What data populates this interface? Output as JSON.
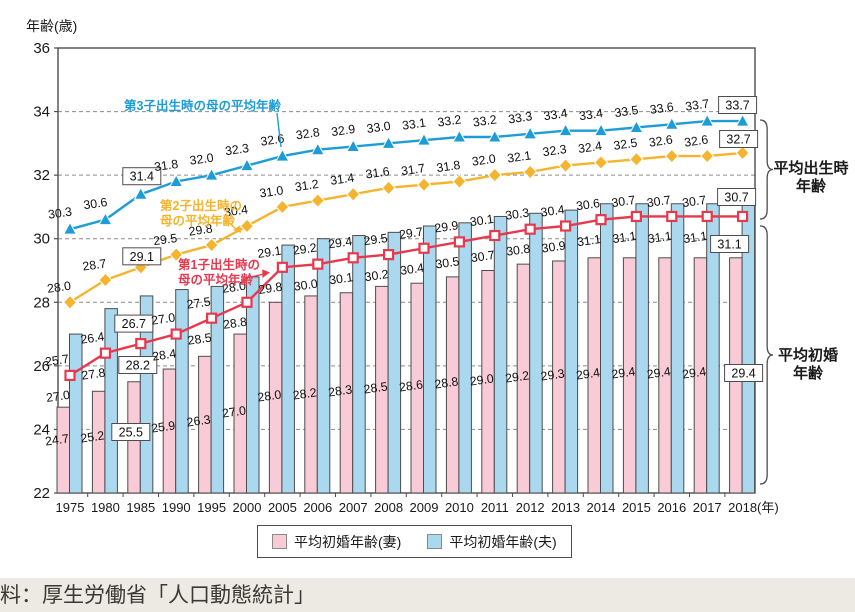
{
  "chart_data": {
    "type": "combo",
    "title": "",
    "ylabel": "年齢(歳)",
    "x_unit_suffix": "(年)",
    "ylim": [
      22,
      36
    ],
    "yticks": [
      22,
      24,
      26,
      28,
      30,
      32,
      34,
      36
    ],
    "grid": "horizontal-dashed",
    "legend_position": "bottom",
    "categories": [
      "1975",
      "1980",
      "1985",
      "1990",
      "1995",
      "2000",
      "2005",
      "2006",
      "2007",
      "2008",
      "2009",
      "2010",
      "2011",
      "2012",
      "2013",
      "2014",
      "2015",
      "2016",
      "2017",
      "2018"
    ],
    "bar_series": [
      {
        "key": "wife",
        "name": "平均初婚年齢(妻)",
        "fill": "#F8CBD6",
        "stroke": "#4d4d4d",
        "values": [
          24.7,
          25.2,
          25.5,
          25.9,
          26.3,
          27.0,
          28.0,
          28.2,
          28.3,
          28.5,
          28.6,
          28.8,
          29.0,
          29.2,
          29.3,
          29.4,
          29.4,
          29.4,
          29.4,
          29.4
        ]
      },
      {
        "key": "husband",
        "name": "平均初婚年齢(夫)",
        "fill": "#A9D8EF",
        "stroke": "#4d4d4d",
        "values": [
          27.0,
          27.8,
          28.2,
          28.4,
          28.5,
          28.8,
          29.8,
          30.0,
          30.1,
          30.2,
          30.4,
          30.5,
          30.7,
          30.8,
          30.9,
          31.1,
          31.1,
          31.1,
          31.1,
          31.1
        ]
      }
    ],
    "line_series": [
      {
        "key": "first-child",
        "name": "第1子出生時の母の平均年齢",
        "annotation_lines": [
          "第1子出生時の",
          "母の平均年齢"
        ],
        "color": "#E8384E",
        "marker": "open-square",
        "values": [
          25.7,
          26.4,
          26.7,
          27.0,
          27.5,
          28.0,
          29.1,
          29.2,
          29.4,
          29.5,
          29.7,
          29.9,
          30.1,
          30.3,
          30.4,
          30.6,
          30.7,
          30.7,
          30.7,
          30.7
        ]
      },
      {
        "key": "second-child",
        "name": "第2子出生時の母の平均年齢",
        "annotation_lines": [
          "第2子出生時の",
          "母の平均年齢"
        ],
        "color": "#F5B42D",
        "marker": "diamond",
        "values": [
          28.0,
          28.7,
          29.1,
          29.5,
          29.8,
          30.4,
          31.0,
          31.2,
          31.4,
          31.6,
          31.7,
          31.8,
          32.0,
          32.1,
          32.3,
          32.4,
          32.5,
          32.6,
          32.6,
          32.7
        ]
      },
      {
        "key": "third-child",
        "name": "第3子出生時の母の平均年齢",
        "annotation_lines": [
          "第3子出生時の母の平均年齢"
        ],
        "color": "#1E9CD7",
        "marker": "triangle",
        "values": [
          30.3,
          30.6,
          31.4,
          31.8,
          32.0,
          32.3,
          32.6,
          32.8,
          32.9,
          33.0,
          33.1,
          33.2,
          33.2,
          33.3,
          33.4,
          33.4,
          33.5,
          33.6,
          33.7,
          33.7
        ]
      }
    ],
    "boxed_label_years": [
      "1985",
      "2018"
    ],
    "right_braces": [
      {
        "label_lines": [
          "平均出生時",
          "年齢"
        ]
      },
      {
        "label_lines": [
          "平均初婚",
          "年齢"
        ]
      }
    ],
    "colors": {
      "axis": "#4d4d4d",
      "grid": "#8c8c8c",
      "value_label": "#111111"
    }
  },
  "source": {
    "text": "資料：厚生労働省「人口動態統計」"
  }
}
